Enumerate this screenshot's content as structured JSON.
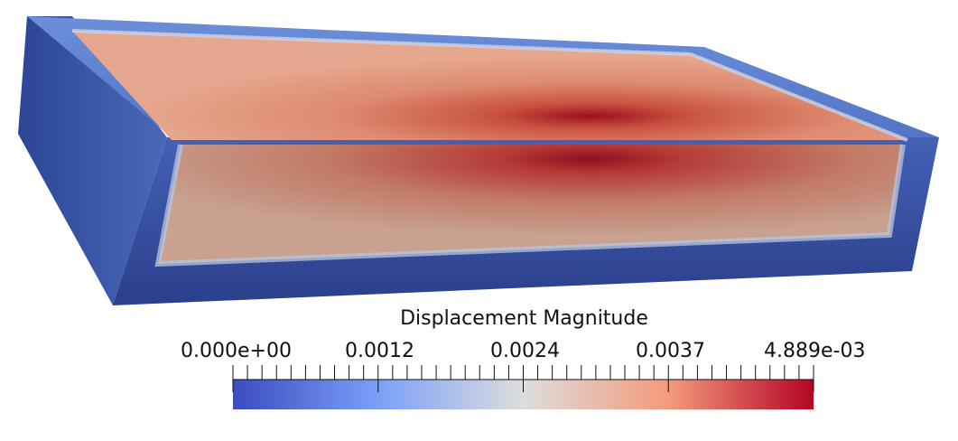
{
  "scalar_bar": {
    "title": "Displacement Magnitude",
    "tick_labels": [
      "0.000e+00",
      "0.0012",
      "0.0024",
      "0.0037",
      "4.889e-03"
    ],
    "colormap": [
      "#3b4cc0",
      "#7b9ff9",
      "#dddddd",
      "#f49a7b",
      "#b40426"
    ]
  },
  "render": {
    "outer_color": "#3d57a8",
    "top_color": "#e0917a",
    "peak_color": "#9b0f1d"
  }
}
